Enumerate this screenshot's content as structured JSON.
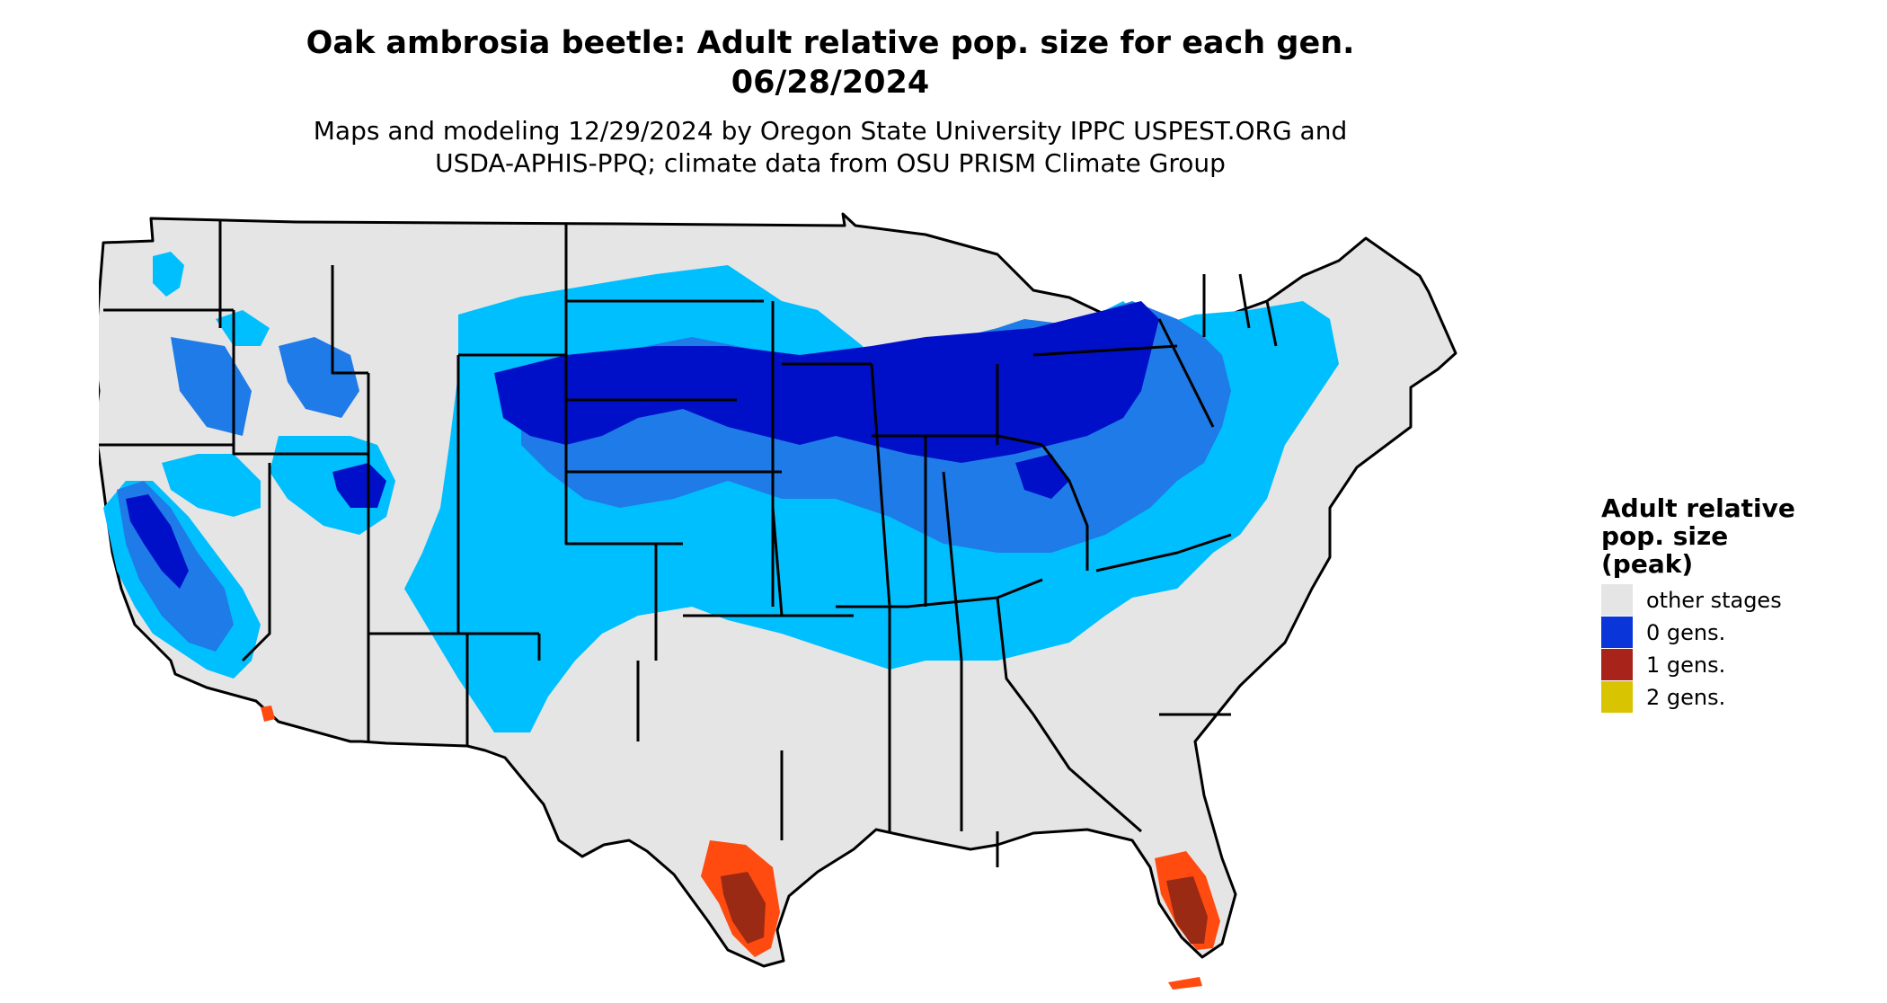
{
  "header": {
    "title_line1": "Oak ambrosia beetle: Adult relative pop. size for each gen.",
    "title_line2": "06/28/2024",
    "subtitle_line1": "Maps and modeling 12/29/2024 by Oregon State University IPPC USPEST.ORG and",
    "subtitle_line2": "USDA-APHIS-PPQ; climate data from OSU PRISM Climate Group"
  },
  "legend": {
    "title_line1": "Adult relative",
    "title_line2": "pop. size",
    "title_line3": "(peak)",
    "items": [
      {
        "label": "other stages",
        "color": "#e5e5e5"
      },
      {
        "label": "0 gens.",
        "color": "#0a35d8"
      },
      {
        "label": "1 gens.",
        "color": "#a8241a"
      },
      {
        "label": "2 gens.",
        "color": "#d8c400"
      }
    ]
  },
  "map_colors": {
    "land": "#e5e5e5",
    "light_blue": "#00bfff",
    "mid_blue": "#1e7be8",
    "dark_blue": "#0010c8",
    "orange": "#ff4a10",
    "dark_red": "#9a2a14",
    "border": "#000000"
  }
}
